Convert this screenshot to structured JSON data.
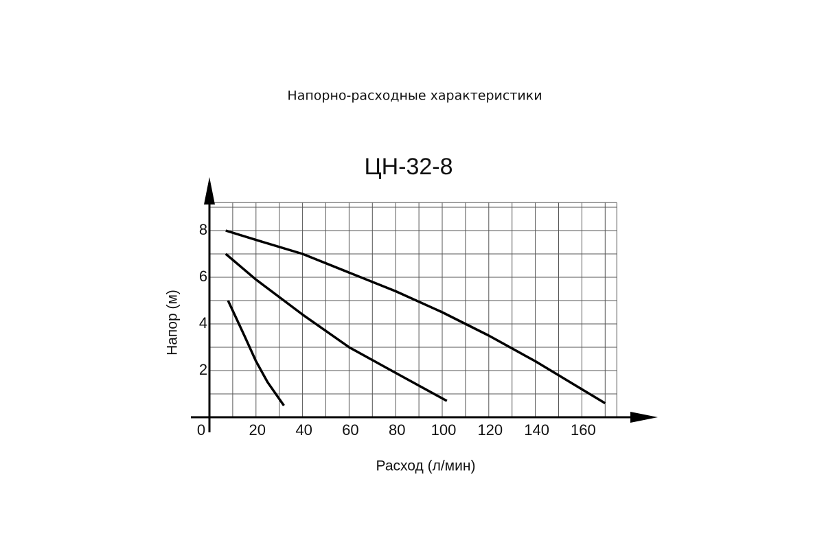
{
  "chart_data": {
    "type": "line",
    "title": "Напорно-расходные характеристики",
    "subtitle": "ЦН-32-8",
    "x_label": "Расход (л/мин)",
    "y_label": "Напор (м)",
    "xlim": [
      0,
      175
    ],
    "xticks": [
      0,
      20,
      40,
      60,
      80,
      100,
      120,
      140,
      160
    ],
    "ylim": [
      0,
      9.2
    ],
    "yticks": [
      2,
      4,
      6,
      8
    ],
    "grid": true,
    "series": [
      {
        "color": "#000000",
        "x": [
          7,
          20,
          40,
          60,
          80,
          100,
          120,
          140,
          160,
          170
        ],
        "values": [
          8,
          7.6,
          7.0,
          6.2,
          5.4,
          4.5,
          3.5,
          2.4,
          1.2,
          0.6
        ]
      },
      {
        "color": "#000000",
        "x": [
          7,
          20,
          40,
          60,
          80,
          102
        ],
        "values": [
          7,
          5.9,
          4.4,
          3.0,
          1.9,
          0.7
        ]
      },
      {
        "color": "#000000",
        "x": [
          8,
          15,
          20,
          25,
          32
        ],
        "values": [
          5,
          3.5,
          2.4,
          1.5,
          0.5
        ]
      }
    ]
  }
}
